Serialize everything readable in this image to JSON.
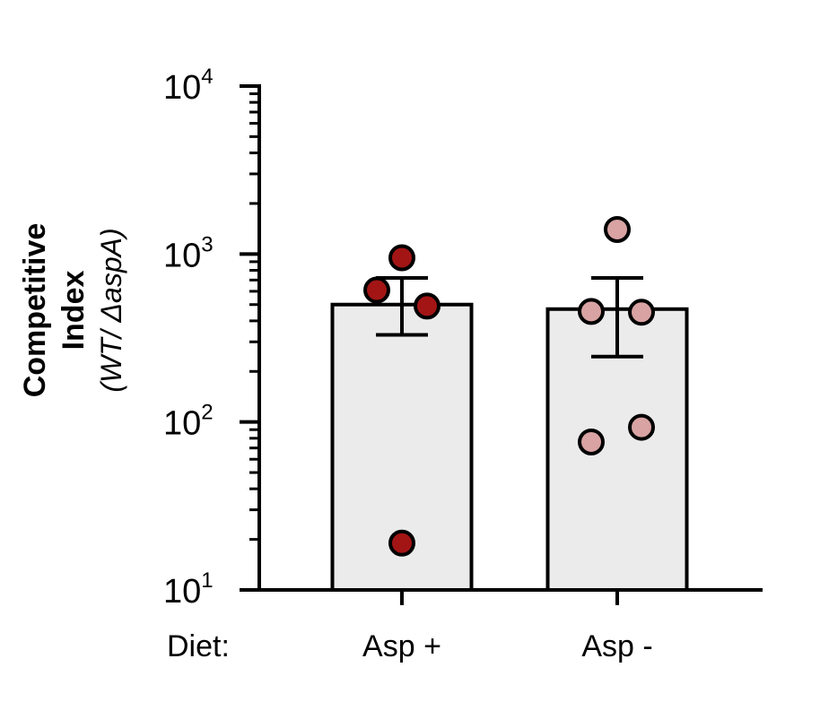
{
  "chart_data": {
    "type": "bar",
    "yscale": "log",
    "ylim": [
      10,
      10000
    ],
    "y_ticks": [
      {
        "value": 10,
        "base": "10",
        "exp": "1"
      },
      {
        "value": 100,
        "base": "10",
        "exp": "2"
      },
      {
        "value": 1000,
        "base": "10",
        "exp": "3"
      },
      {
        "value": 10000,
        "base": "10",
        "exp": "4"
      }
    ],
    "ylabel": [
      "Competitive",
      "Index",
      "(WT/ ΔaspA)"
    ],
    "x_prefix_label": "Diet:",
    "categories": [
      "Asp +",
      "Asp -"
    ],
    "bars": [
      {
        "category": "Asp +",
        "mean": 500,
        "error_low": 330,
        "error_high": 720,
        "points": [
          950,
          610,
          490,
          19
        ],
        "point_color": "#a31515"
      },
      {
        "category": "Asp -",
        "mean": 470,
        "error_low": 245,
        "error_high": 720,
        "points": [
          1400,
          455,
          450,
          93,
          76
        ],
        "point_color": "#d9a3a3"
      }
    ],
    "bar_fill": "#ebebeb",
    "stroke_color": "#000000",
    "grid": false,
    "legend": "none"
  }
}
